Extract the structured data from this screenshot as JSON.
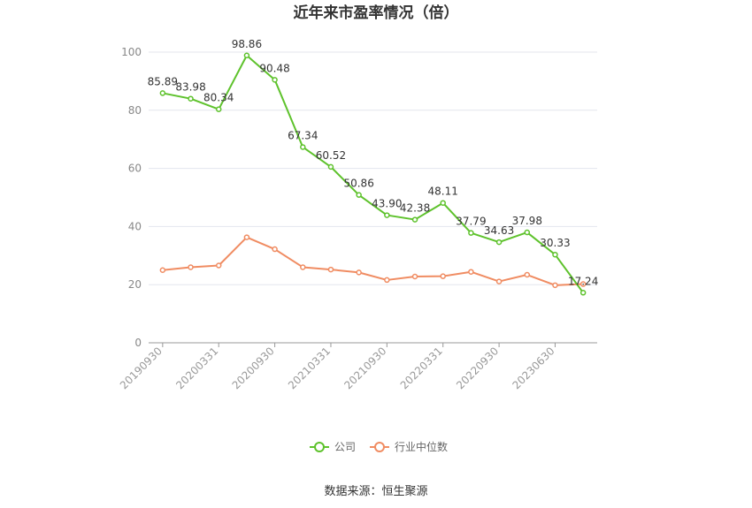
{
  "chart_data": {
    "type": "line",
    "title": "近年来市盈率情况（倍）",
    "xlabel": "",
    "ylabel": "",
    "ylim": [
      0,
      100
    ],
    "yticks": [
      0,
      20,
      40,
      60,
      80,
      100
    ],
    "x": [
      "20190930",
      "20191231",
      "20200331",
      "20200630",
      "20200930",
      "20201231",
      "20210331",
      "20210630",
      "20210930",
      "20211231",
      "20220331",
      "20220630",
      "20220930",
      "20221231",
      "20230630",
      "20230930"
    ],
    "x_tick_labels": [
      "20190930",
      "20200331",
      "20200930",
      "20210331",
      "20210930",
      "20220331",
      "20220930",
      "20230630"
    ],
    "series": [
      {
        "name": "公司",
        "color": "#5ec22c",
        "values": [
          85.89,
          83.98,
          80.34,
          98.86,
          90.48,
          67.34,
          60.52,
          50.86,
          43.9,
          42.38,
          48.11,
          37.79,
          34.63,
          37.98,
          30.33,
          17.24
        ],
        "labels": [
          "85.89",
          "83.98",
          "80.34",
          "98.86",
          "90.48",
          "67.34",
          "60.52",
          "50.86",
          "43.90",
          "42.38",
          "48.11",
          "37.79",
          "34.63",
          "37.98",
          "30.33",
          "17.24"
        ]
      },
      {
        "name": "行业中位数",
        "color": "#f08c62",
        "values": [
          25.0,
          26.0,
          26.6,
          36.3,
          32.2,
          26.0,
          25.2,
          24.2,
          21.6,
          22.8,
          22.9,
          24.4,
          21.1,
          23.4,
          19.8,
          20.2
        ]
      }
    ],
    "legend_position": "bottom",
    "grid": true
  },
  "source": "数据来源：恒生聚源"
}
